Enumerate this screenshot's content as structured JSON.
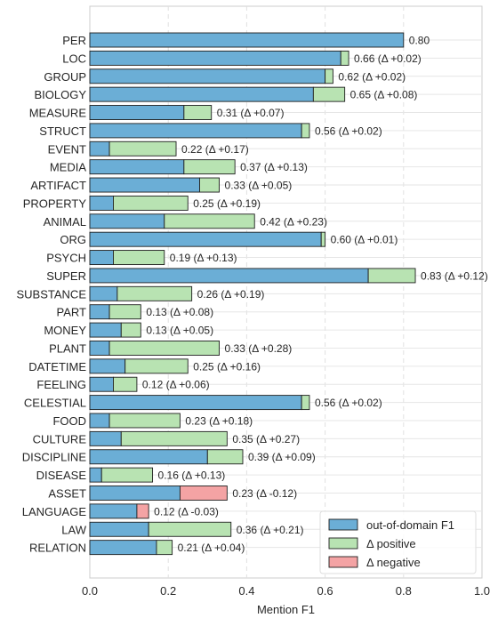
{
  "chart_data": {
    "type": "bar",
    "orientation": "horizontal",
    "stacked": true,
    "xlabel": "Mention F1",
    "xlim": [
      0.0,
      1.0
    ],
    "xticks": [
      "0.0",
      "0.2",
      "0.4",
      "0.6",
      "0.8",
      "1.0"
    ],
    "grid": "vertical dashed",
    "legend_position": "bottom-right",
    "categories": [
      "PER",
      "LOC",
      "GROUP",
      "BIOLOGY",
      "MEASURE",
      "STRUCT",
      "EVENT",
      "MEDIA",
      "ARTIFACT",
      "PROPERTY",
      "ANIMAL",
      "ORG",
      "PSYCH",
      "SUPER",
      "SUBSTANCE",
      "PART",
      "MONEY",
      "PLANT",
      "DATETIME",
      "FEELING",
      "CELESTIAL",
      "FOOD",
      "CULTURE",
      "DISCIPLINE",
      "DISEASE",
      "ASSET",
      "LANGUAGE",
      "LAW",
      "RELATION"
    ],
    "series": [
      {
        "name": "out-of-domain F1",
        "color": "#6baed6",
        "values": [
          0.8,
          0.64,
          0.6,
          0.57,
          0.24,
          0.54,
          0.05,
          0.24,
          0.28,
          0.06,
          0.19,
          0.59,
          0.06,
          0.71,
          0.07,
          0.05,
          0.08,
          0.05,
          0.09,
          0.06,
          0.54,
          0.05,
          0.08,
          0.3,
          0.03,
          0.23,
          0.12,
          0.15,
          0.17
        ]
      },
      {
        "name": "Δ positive",
        "color": "#b8e3b2",
        "values": [
          0.0,
          0.02,
          0.02,
          0.08,
          0.07,
          0.02,
          0.17,
          0.13,
          0.05,
          0.19,
          0.23,
          0.01,
          0.13,
          0.12,
          0.19,
          0.08,
          0.05,
          0.28,
          0.16,
          0.06,
          0.02,
          0.18,
          0.27,
          0.09,
          0.13,
          0.0,
          0.0,
          0.21,
          0.04
        ]
      },
      {
        "name": "Δ negative",
        "color": "#f4a3a4",
        "values": [
          0,
          0,
          0,
          0,
          0,
          0,
          0,
          0,
          0,
          0,
          0,
          0,
          0,
          0,
          0,
          0,
          0,
          0,
          0,
          0,
          0,
          0,
          0,
          0,
          0,
          0.12,
          0.03,
          0,
          0
        ]
      }
    ],
    "data_labels": [
      "0.80",
      "0.66 (Δ +0.02)",
      "0.62 (Δ +0.02)",
      "0.65 (Δ +0.08)",
      "0.31 (Δ +0.07)",
      "0.56 (Δ +0.02)",
      "0.22 (Δ +0.17)",
      "0.37 (Δ +0.13)",
      "0.33 (Δ +0.05)",
      "0.25 (Δ +0.19)",
      "0.42 (Δ +0.23)",
      "0.60 (Δ +0.01)",
      "0.19 (Δ +0.13)",
      "0.83 (Δ +0.12)",
      "0.26 (Δ +0.19)",
      "0.13 (Δ +0.08)",
      "0.13 (Δ +0.05)",
      "0.33 (Δ +0.28)",
      "0.25 (Δ +0.16)",
      "0.12 (Δ +0.06)",
      "0.56 (Δ +0.02)",
      "0.23 (Δ +0.18)",
      "0.35 (Δ +0.27)",
      "0.39 (Δ +0.09)",
      "0.16 (Δ +0.13)",
      "0.23 (Δ -0.12)",
      "0.12 (Δ -0.03)",
      "0.36 (Δ +0.21)",
      "0.21 (Δ +0.04)"
    ],
    "legend": [
      "out-of-domain F1",
      "Δ positive",
      "Δ negative"
    ]
  }
}
